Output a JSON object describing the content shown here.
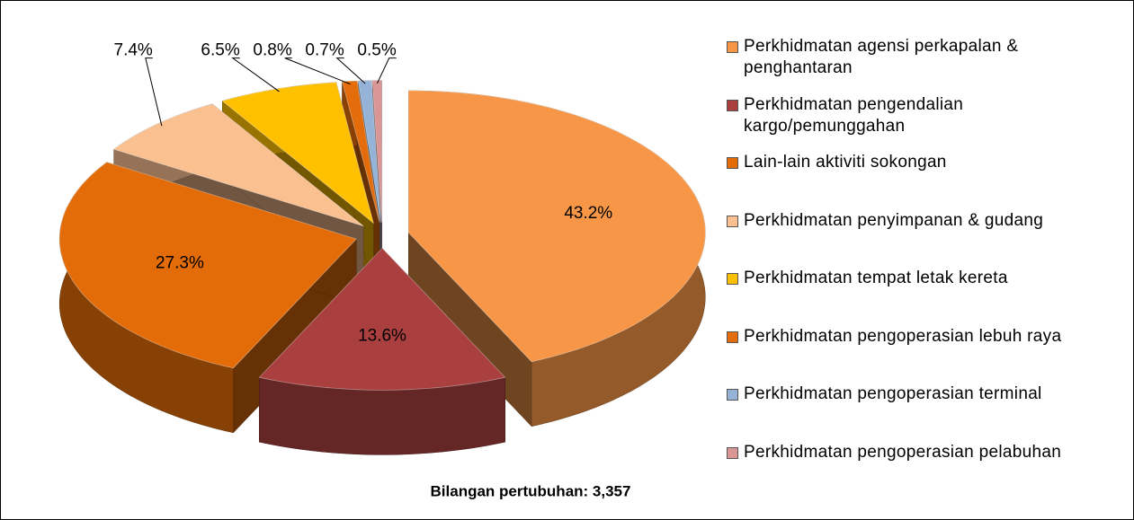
{
  "chart_data": {
    "type": "pie",
    "categories": [
      "Perkhidmatan agensi perkapalan & penghantaran",
      "Perkhidmatan pengendalian kargo/pemunggahan",
      "Lain-lain aktiviti sokongan",
      "Perkhidmatan penyimpanan & gudang",
      "Perkhidmatan tempat letak kereta",
      "Perkhidmatan pengoperasian lebuh raya",
      "Perkhidmatan pengoperasian terminal",
      "Perkhidmatan pengoperasian pelabuhan"
    ],
    "values": [
      43.2,
      13.6,
      27.3,
      7.4,
      6.5,
      0.8,
      0.7,
      0.5
    ],
    "value_labels": [
      "43.2%",
      "13.6%",
      "27.3%",
      "7.4%",
      "6.5%",
      "0.8%",
      "0.7%",
      "0.5%"
    ],
    "colors": [
      "#f79646",
      "#a9403f",
      "#e36c09",
      "#fac090",
      "#ffc000",
      "#e46c0a",
      "#95b3d7",
      "#d99694"
    ],
    "annotation": "Bilangan pertubuhan: 3,357",
    "legend": "right"
  }
}
